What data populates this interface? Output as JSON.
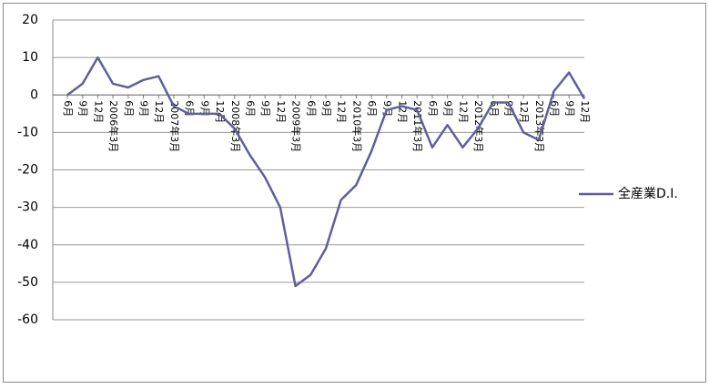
{
  "chart_data": {
    "type": "line",
    "categories": [
      "6月",
      "9月",
      "12月",
      "2006年3月",
      "6月",
      "9月",
      "12月",
      "2007年3月",
      "6月",
      "9月",
      "12月",
      "2008年3月",
      "6月",
      "9月",
      "12月",
      "2009年3月",
      "6月",
      "9月",
      "12月",
      "2010年3月",
      "6月",
      "9月",
      "12月",
      "2011年3月",
      "6月",
      "9月",
      "12月",
      "2012年3月",
      "6月",
      "9月",
      "12月",
      "2013年3月",
      "6月",
      "9月",
      "12月"
    ],
    "series": [
      {
        "name": "全産業D.I.",
        "color": "#5f5f9c",
        "values": [
          0,
          3,
          10,
          3,
          2,
          4,
          5,
          -3,
          -5,
          -5,
          -5,
          -9,
          -16,
          -22,
          -30,
          -51,
          -48,
          -41,
          -28,
          -24,
          -15,
          -4,
          -3,
          -4,
          -14,
          -8,
          -14,
          -9,
          -2,
          -2,
          -10,
          -12,
          1,
          6,
          -1
        ]
      }
    ],
    "ylim": [
      -60,
      20
    ],
    "yticks": [
      20,
      10,
      0,
      -10,
      -20,
      -30,
      -40,
      -50,
      -60
    ],
    "grid": true,
    "legend": "right"
  }
}
